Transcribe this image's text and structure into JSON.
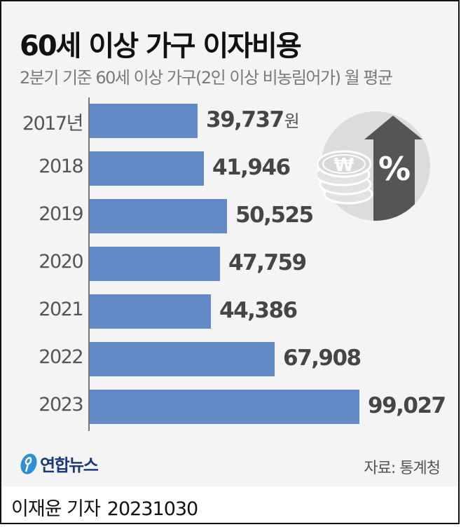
{
  "header": {
    "title": "60세 이상 가구 이자비용",
    "subtitle": "2분기 기준 60세 이상 가구(2인 이상 비농림어가) 월 평균"
  },
  "chart_data": {
    "type": "bar",
    "orientation": "horizontal",
    "title": "60세 이상 가구 이자비용",
    "subtitle": "2분기 기준 60세 이상 가구(2인 이상 비농림어가) 월 평균",
    "xlabel": "",
    "ylabel": "",
    "unit": "원",
    "categories": [
      "2017년",
      "2018",
      "2019",
      "2020",
      "2021",
      "2022",
      "2023"
    ],
    "values": [
      39737,
      41946,
      50525,
      47759,
      44386,
      67908,
      99027
    ],
    "value_labels": [
      "39,737",
      "41,946",
      "50,525",
      "47,759",
      "44,386",
      "67,908",
      "99,027"
    ],
    "bar_color": "#628ac6",
    "grid": false,
    "legend": null,
    "source": "자료: 통계청"
  },
  "rows": [
    {
      "year": "2017년",
      "label": "39,737",
      "unit": "원"
    },
    {
      "year": "2018",
      "label": "41,946",
      "unit": ""
    },
    {
      "year": "2019",
      "label": "50,525",
      "unit": ""
    },
    {
      "year": "2020",
      "label": "47,759",
      "unit": ""
    },
    {
      "year": "2021",
      "label": "44,386",
      "unit": ""
    },
    {
      "year": "2022",
      "label": "67,908",
      "unit": ""
    },
    {
      "year": "2023",
      "label": "99,027",
      "unit": ""
    }
  ],
  "icon": {
    "name": "won-coins-rising-percent-icon",
    "currency_symbol": "₩",
    "percent_symbol": "%"
  },
  "footer": {
    "logo_text": "연합뉴스",
    "source": "자료: 통계청",
    "reporter": "이재윤 기자",
    "date": "20231030"
  },
  "colors": {
    "bar": "#628ac6",
    "panel_bg": "#f4f4f4",
    "title": "#111111",
    "value_text": "#454545",
    "logo": "#1d3a78"
  }
}
